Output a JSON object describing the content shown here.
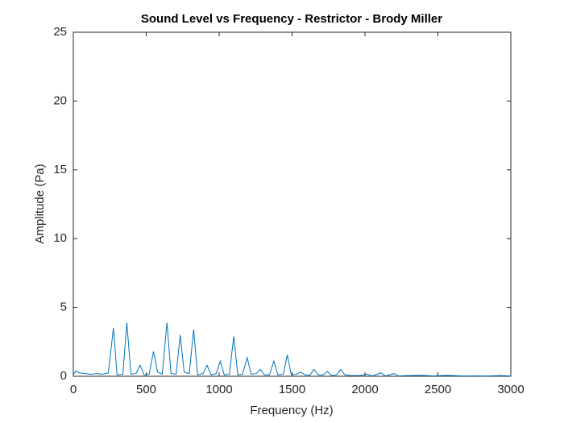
{
  "chart_data": {
    "type": "line",
    "title": "Sound Level vs Frequency - Restrictor - Brody Miller",
    "x_label": "Frequency (Hz)",
    "y_label": "Amplitude (Pa)",
    "x": [
      0,
      18,
      40,
      80,
      120,
      160,
      200,
      240,
      275,
      300,
      340,
      367,
      395,
      430,
      458,
      485,
      520,
      550,
      578,
      610,
      642,
      670,
      705,
      733,
      760,
      795,
      825,
      852,
      890,
      917,
      945,
      980,
      1008,
      1035,
      1070,
      1100,
      1128,
      1160,
      1192,
      1220,
      1255,
      1283,
      1310,
      1345,
      1375,
      1403,
      1440,
      1467,
      1495,
      1530,
      1558,
      1590,
      1620,
      1650,
      1680,
      1715,
      1742,
      1770,
      1805,
      1833,
      1862,
      1900,
      1925,
      1960,
      2017,
      2050,
      2110,
      2140,
      2200,
      2230,
      2290,
      2380,
      2470,
      2565,
      2660,
      2750,
      2850,
      2930,
      3000
    ],
    "series": [
      {
        "name": "Amplitude",
        "color": "#0072bd",
        "values": [
          0.1,
          0.4,
          0.25,
          0.2,
          0.15,
          0.2,
          0.15,
          0.25,
          3.5,
          0.1,
          0.15,
          3.9,
          0.15,
          0.2,
          0.8,
          0.1,
          0.15,
          1.8,
          0.3,
          0.15,
          3.9,
          0.2,
          0.15,
          3.0,
          0.3,
          0.2,
          3.4,
          0.1,
          0.2,
          0.8,
          0.1,
          0.2,
          1.1,
          0.1,
          0.15,
          2.9,
          0.1,
          0.15,
          1.35,
          0.15,
          0.2,
          0.5,
          0.1,
          0.1,
          1.1,
          0.1,
          0.15,
          1.55,
          0.1,
          0.15,
          0.3,
          0.1,
          0.05,
          0.5,
          0.1,
          0.1,
          0.35,
          0.05,
          0.1,
          0.5,
          0.1,
          0.05,
          0.05,
          0.05,
          0.15,
          0.02,
          0.25,
          0.02,
          0.2,
          0.02,
          0.05,
          0.07,
          0.02,
          0.07,
          0.02,
          0.03,
          0.02,
          0.05,
          0.02
        ]
      }
    ],
    "xlim": [
      0,
      3000
    ],
    "xticks": [
      0,
      500,
      1000,
      1500,
      2000,
      2500,
      3000
    ],
    "ylim": [
      0,
      25
    ],
    "yticks": [
      0,
      5,
      10,
      15,
      20,
      25
    ],
    "grid": false
  }
}
